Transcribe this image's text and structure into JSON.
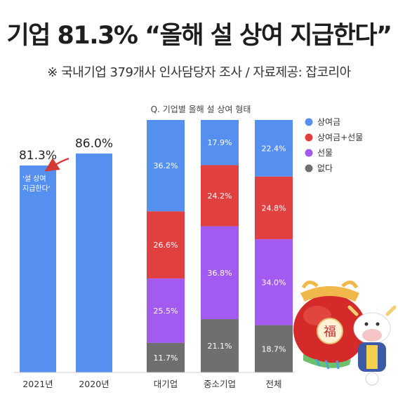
{
  "header": {
    "title": "기업 81.3% “올해 설 상여 지급한다”",
    "subtitle": "※ 국내기업 379개사 인사담당자 조사 / 자료제공: 잡코리아"
  },
  "chart_data": [
    {
      "type": "bar",
      "title": "",
      "categories": [
        "2021년",
        "2020년"
      ],
      "values": [
        81.3,
        86.0
      ],
      "value_labels": [
        "81.3%",
        "86.0%"
      ],
      "annotation": [
        "'설 상여",
        "지급한다'"
      ],
      "color": "#5590f0"
    },
    {
      "type": "bar",
      "stacked": true,
      "title": "Q. 기업별 올해 설 상여 형태",
      "categories": [
        "대기업",
        "중소기업",
        "전체"
      ],
      "series": [
        {
          "name": "상여금",
          "values": [
            36.2,
            17.9,
            22.4
          ],
          "labels": [
            "36.2%",
            "17.9%",
            "22.4%"
          ],
          "color": "#5590f0"
        },
        {
          "name": "상여금+선물",
          "values": [
            26.6,
            24.2,
            24.8
          ],
          "labels": [
            "26.6%",
            "24.2%",
            "24.8%"
          ],
          "color": "#e0403f"
        },
        {
          "name": "선물",
          "values": [
            25.5,
            36.8,
            34.0
          ],
          "labels": [
            "25.5%",
            "36.8%",
            "34.0%"
          ],
          "color": "#a35af0"
        },
        {
          "name": "없다",
          "values": [
            11.7,
            21.1,
            18.7
          ],
          "labels": [
            "11.7%",
            "21.1%",
            "18.7%"
          ],
          "color": "#6f6f6f"
        }
      ],
      "legend_position": "top-right"
    }
  ],
  "decoration": {
    "icon": "lucky-bag-cow-mascot-icon",
    "bag_char": "福"
  }
}
